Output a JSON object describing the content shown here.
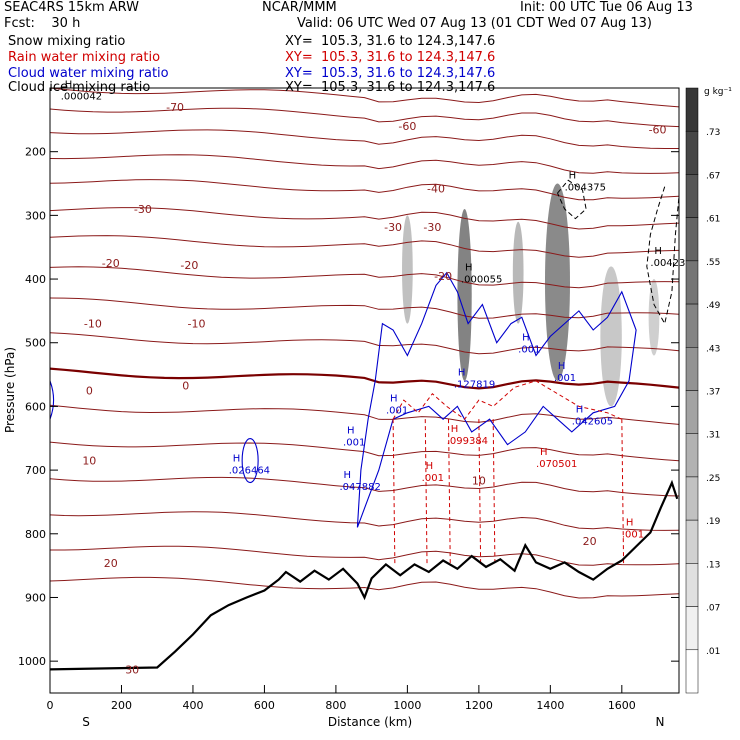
{
  "header": {
    "model": "SEAC4RS 15km ARW",
    "center": "NCAR/MMM",
    "init": "Init: 00 UTC Tue 06 Aug 13",
    "fcst": "Fcst:    30 h",
    "valid": "Valid: 06 UTC Wed 07 Aug 13 (01 CDT Wed 07 Aug 13)",
    "fields": [
      {
        "label": "Snow mixing ratio",
        "color": "#000000"
      },
      {
        "label": "Rain water mixing ratio",
        "color": "#d00000"
      },
      {
        "label": "Cloud water mixing ratio",
        "color": "#0000cc"
      },
      {
        "label": "Cloud ice mixing ratio",
        "color": "#000000"
      }
    ],
    "xy": "XY=  105.3, 31.6 to 124.3,147.6"
  },
  "chart_data": {
    "type": "cross-section contour",
    "xlabel": "Distance (km)",
    "ylabel": "Pressure (hPa)",
    "xlim": [
      0,
      1760
    ],
    "ylim": [
      1050,
      100
    ],
    "x_ticks": [
      "0",
      "200",
      "400",
      "600",
      "800",
      "1000",
      "1200",
      "1400",
      "1600"
    ],
    "y_ticks": [
      "200",
      "300",
      "400",
      "500",
      "600",
      "700",
      "800",
      "900",
      "1000"
    ],
    "end_labels": {
      "left": "S",
      "right": "N"
    },
    "colorbar": {
      "unit": "g kg⁻¹",
      "levels": [
        ".73",
        ".67",
        ".61",
        ".55",
        ".49",
        ".43",
        ".37",
        ".31",
        ".25",
        ".19",
        ".13",
        ".07",
        ".01"
      ]
    },
    "temperature_contour_labels": [
      {
        "x": 350,
        "p": 130,
        "text": "-70"
      },
      {
        "x": 1000,
        "p": 160,
        "text": "-60"
      },
      {
        "x": 1700,
        "p": 165,
        "text": "-60"
      },
      {
        "x": 1080,
        "p": 258,
        "text": "-40"
      },
      {
        "x": 260,
        "p": 290,
        "text": "-30"
      },
      {
        "x": 960,
        "p": 318,
        "text": "-30"
      },
      {
        "x": 1070,
        "p": 318,
        "text": "-30"
      },
      {
        "x": 170,
        "p": 375,
        "text": "-20"
      },
      {
        "x": 390,
        "p": 378,
        "text": "-20"
      },
      {
        "x": 1100,
        "p": 395,
        "text": "-20"
      },
      {
        "x": 120,
        "p": 470,
        "text": "-10"
      },
      {
        "x": 410,
        "p": 470,
        "text": "-10"
      },
      {
        "x": 110,
        "p": 575,
        "text": "0"
      },
      {
        "x": 380,
        "p": 567,
        "text": "0"
      },
      {
        "x": 110,
        "p": 685,
        "text": "10"
      },
      {
        "x": 1200,
        "p": 716,
        "text": "10"
      },
      {
        "x": 170,
        "p": 846,
        "text": "20"
      },
      {
        "x": 1510,
        "p": 811,
        "text": "20"
      },
      {
        "x": 230,
        "p": 1013,
        "text": "30"
      }
    ],
    "maxima_labels": [
      {
        "x": 30,
        "p": 115,
        "text": ".000042",
        "color": "#000000"
      },
      {
        "x": 1440,
        "p": 258,
        "text": ".004375",
        "color": "#000000"
      },
      {
        "x": 1680,
        "p": 376,
        "text": ".00423",
        "color": "#000000"
      },
      {
        "x": 1150,
        "p": 402,
        "text": ".000055",
        "color": "#000000"
      },
      {
        "x": 1130,
        "p": 567,
        "text": ".127819",
        "color": "#0000cc"
      },
      {
        "x": 1310,
        "p": 512,
        "text": ".001",
        "color": "#0000cc"
      },
      {
        "x": 1410,
        "p": 557,
        "text": ".001",
        "color": "#0000cc"
      },
      {
        "x": 940,
        "p": 608,
        "text": ".001",
        "color": "#0000cc"
      },
      {
        "x": 1460,
        "p": 625,
        "text": ".042605",
        "color": "#0000cc"
      },
      {
        "x": 820,
        "p": 658,
        "text": ".001",
        "color": "#0000cc"
      },
      {
        "x": 500,
        "p": 702,
        "text": ".026464",
        "color": "#0000cc"
      },
      {
        "x": 810,
        "p": 728,
        "text": ".047882",
        "color": "#0000cc"
      },
      {
        "x": 1110,
        "p": 656,
        "text": ".099384",
        "color": "#d00000"
      },
      {
        "x": 1360,
        "p": 692,
        "text": ".070501",
        "color": "#d00000"
      },
      {
        "x": 1040,
        "p": 714,
        "text": ".001",
        "color": "#d00000"
      },
      {
        "x": 1600,
        "p": 803,
        "text": ".001",
        "color": "#d00000"
      }
    ],
    "topography": [
      [
        0,
        1013
      ],
      [
        300,
        1010
      ],
      [
        350,
        985
      ],
      [
        400,
        958
      ],
      [
        450,
        928
      ],
      [
        500,
        912
      ],
      [
        550,
        900
      ],
      [
        600,
        889
      ],
      [
        640,
        872
      ],
      [
        660,
        860
      ],
      [
        700,
        875
      ],
      [
        740,
        858
      ],
      [
        780,
        872
      ],
      [
        820,
        855
      ],
      [
        860,
        878
      ],
      [
        880,
        900
      ],
      [
        900,
        870
      ],
      [
        940,
        848
      ],
      [
        980,
        865
      ],
      [
        1020,
        848
      ],
      [
        1060,
        860
      ],
      [
        1100,
        842
      ],
      [
        1140,
        855
      ],
      [
        1180,
        835
      ],
      [
        1220,
        852
      ],
      [
        1260,
        840
      ],
      [
        1300,
        858
      ],
      [
        1330,
        818
      ],
      [
        1360,
        845
      ],
      [
        1400,
        855
      ],
      [
        1440,
        845
      ],
      [
        1480,
        860
      ],
      [
        1520,
        872
      ],
      [
        1560,
        855
      ],
      [
        1600,
        842
      ],
      [
        1640,
        820
      ],
      [
        1680,
        798
      ],
      [
        1710,
        758
      ],
      [
        1740,
        720
      ],
      [
        1755,
        745
      ]
    ],
    "cloud_ice_shading": [
      {
        "x": 1000,
        "pTop": 300,
        "pBot": 470,
        "w": 30,
        "v": 0.3
      },
      {
        "x": 1160,
        "pTop": 290,
        "pBot": 560,
        "w": 40,
        "v": 0.7
      },
      {
        "x": 1310,
        "pTop": 310,
        "pBot": 470,
        "w": 30,
        "v": 0.35
      },
      {
        "x": 1420,
        "pTop": 250,
        "pBot": 560,
        "w": 70,
        "v": 0.65
      },
      {
        "x": 1570,
        "pTop": 380,
        "pBot": 600,
        "w": 60,
        "v": 0.25
      },
      {
        "x": 1690,
        "pTop": 400,
        "pBot": 520,
        "w": 30,
        "v": 0.2
      }
    ]
  }
}
